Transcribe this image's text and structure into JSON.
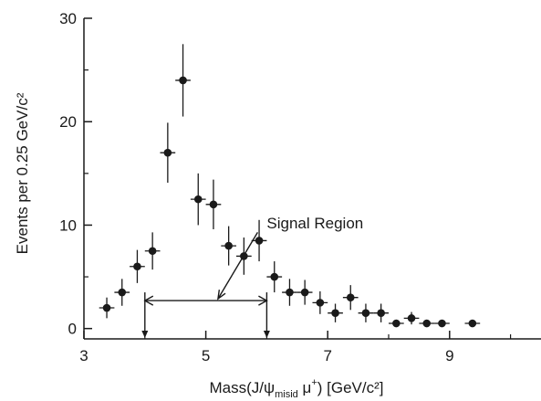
{
  "chart_data": {
    "type": "scatter",
    "title": "",
    "ylabel": "Events per 0.25 GeV/c²",
    "xlabel": {
      "prefix": "Mass(J/ψ",
      "subscript": "misid",
      "middle": " μ",
      "superscript": "+",
      "suffix": ") [GeV/c²]"
    },
    "xlim": [
      3,
      10.5
    ],
    "ylim": [
      -1,
      30
    ],
    "xticks": [
      3,
      5,
      7,
      9
    ],
    "yticks": [
      0,
      10,
      20,
      30
    ],
    "xtick_labels": [
      "3",
      "5",
      "7",
      "9"
    ],
    "ytick_labels": [
      "0",
      "10",
      "20",
      "30"
    ],
    "bin_halfwidth": 0.125,
    "points": [
      {
        "x": 3.375,
        "y": 2.0,
        "err": 1.0
      },
      {
        "x": 3.625,
        "y": 3.5,
        "err": 1.3
      },
      {
        "x": 3.875,
        "y": 6.0,
        "err": 1.6
      },
      {
        "x": 4.125,
        "y": 7.5,
        "err": 1.8
      },
      {
        "x": 4.375,
        "y": 17.0,
        "err": 2.9
      },
      {
        "x": 4.625,
        "y": 24.0,
        "err": 3.5
      },
      {
        "x": 4.875,
        "y": 12.5,
        "err": 2.5
      },
      {
        "x": 5.125,
        "y": 12.0,
        "err": 2.4
      },
      {
        "x": 5.375,
        "y": 8.0,
        "err": 1.9
      },
      {
        "x": 5.625,
        "y": 7.0,
        "err": 1.8
      },
      {
        "x": 5.875,
        "y": 8.5,
        "err": 2.0
      },
      {
        "x": 6.125,
        "y": 5.0,
        "err": 1.5
      },
      {
        "x": 6.375,
        "y": 3.5,
        "err": 1.3
      },
      {
        "x": 6.625,
        "y": 3.5,
        "err": 1.2
      },
      {
        "x": 6.875,
        "y": 2.5,
        "err": 1.1
      },
      {
        "x": 7.125,
        "y": 1.5,
        "err": 0.9
      },
      {
        "x": 7.375,
        "y": 3.0,
        "err": 1.2
      },
      {
        "x": 7.625,
        "y": 1.5,
        "err": 0.9
      },
      {
        "x": 7.875,
        "y": 1.5,
        "err": 0.9
      },
      {
        "x": 8.125,
        "y": 0.5,
        "err": 0.0
      },
      {
        "x": 8.375,
        "y": 1.0,
        "err": 0.6
      },
      {
        "x": 8.625,
        "y": 0.5,
        "err": 0.0
      },
      {
        "x": 8.875,
        "y": 0.5,
        "err": 0.0
      },
      {
        "x": 9.375,
        "y": 0.5,
        "err": 0.0
      }
    ],
    "signal_region": {
      "label": "Signal Region",
      "x_min": 4.0,
      "x_max": 6.0,
      "y": 2.7
    }
  }
}
